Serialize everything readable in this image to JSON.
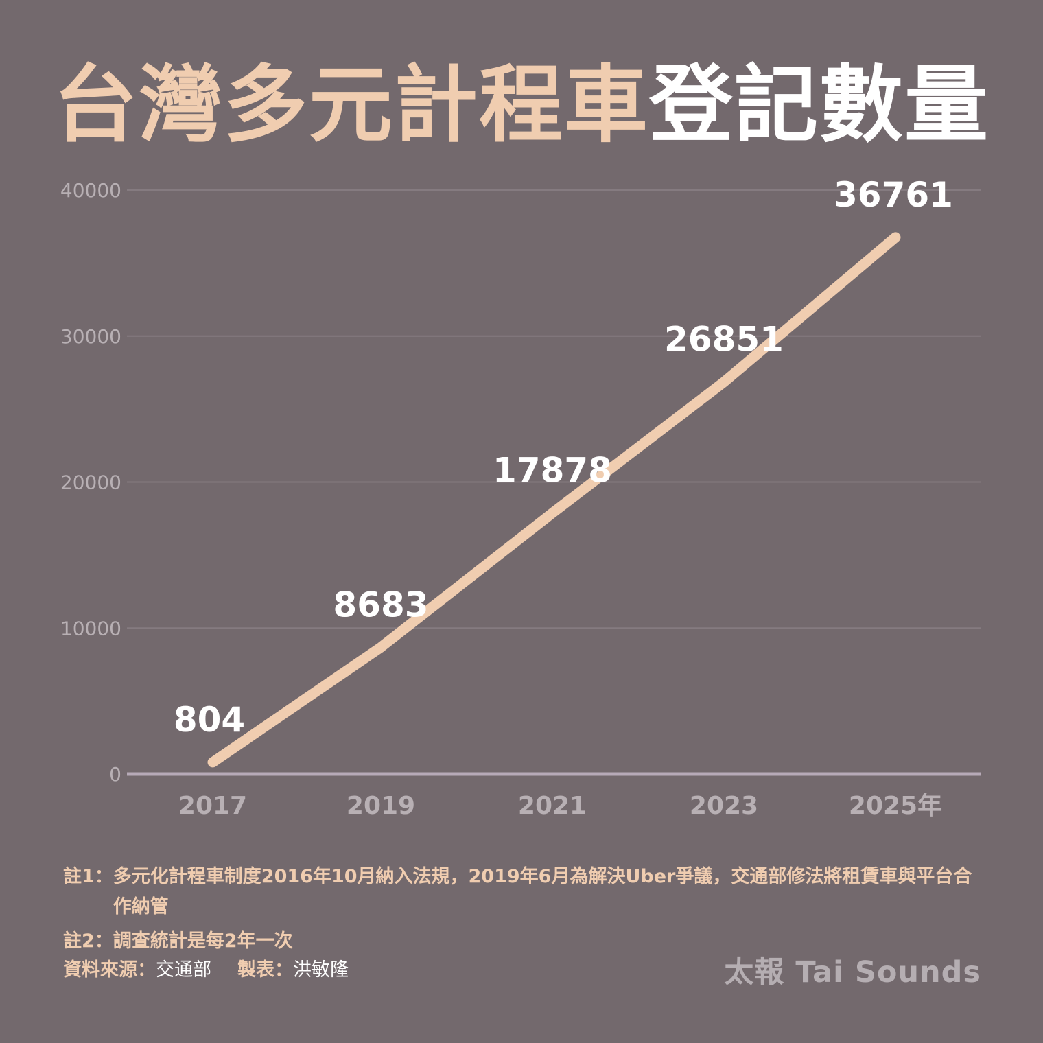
{
  "title": {
    "part1": "台灣多元計程車",
    "part2": "登記數量"
  },
  "chart_data": {
    "type": "line",
    "title": "台灣多元計程車登記數量",
    "x": [
      "2017",
      "2019",
      "2021",
      "2023",
      "2025年"
    ],
    "series": [
      {
        "values": [
          804,
          8683,
          17878,
          26851,
          36761
        ]
      }
    ],
    "data_labels": [
      "804",
      "8683",
      "17878",
      "26851",
      "36761"
    ],
    "ylim": [
      0,
      40000
    ],
    "yticks": [
      0,
      10000,
      20000,
      30000,
      40000
    ],
    "grid": true,
    "colors": {
      "background": "#73696d",
      "line": "#f0cdb0",
      "grid": "#857b80",
      "axis": "#b7aab8",
      "tick_label": "#b8b0b4",
      "data_label": "#ffffff"
    }
  },
  "notes": {
    "note1_label": "註1：",
    "note1_text": "多元化計程車制度2016年10月納入法規，2019年6月為解決Uber爭議，交通部修法將租賃車與平台合作納管",
    "note2_label": "註2：",
    "note2_text": "調查統計是每2年一次",
    "source_label": "資料來源：",
    "source_value": "交通部",
    "maker_label": "製表：",
    "maker_value": "洪敏隆"
  },
  "brand": "太報 Tai Sounds"
}
